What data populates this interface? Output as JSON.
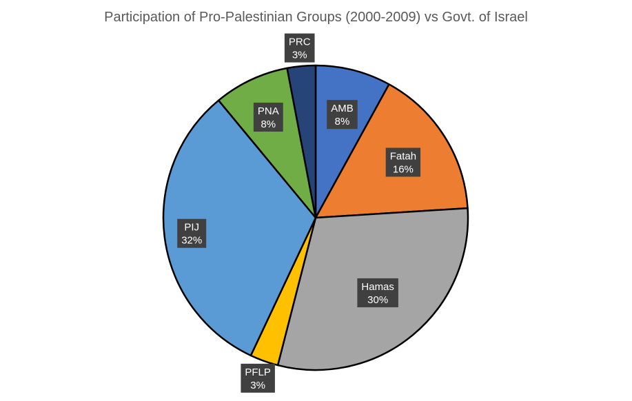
{
  "chart_data": {
    "type": "pie",
    "title": "Participation of Pro-Palestinian Groups (2000-2009) vs Govt. of Israel",
    "slices": [
      {
        "name": "AMB",
        "value": 8,
        "label": "8%",
        "color": "#4472C4"
      },
      {
        "name": "Fatah",
        "value": 16,
        "label": "16%",
        "color": "#ED7D31"
      },
      {
        "name": "Hamas",
        "value": 30,
        "label": "30%",
        "color": "#A5A5A5"
      },
      {
        "name": "PFLP",
        "value": 3,
        "label": "3%",
        "color": "#FFC000"
      },
      {
        "name": "PIJ",
        "value": 32,
        "label": "32%",
        "color": "#5B9BD5"
      },
      {
        "name": "PNA",
        "value": 8,
        "label": "8%",
        "color": "#70AD47"
      },
      {
        "name": "PRC",
        "value": 3,
        "label": "3%",
        "color": "#264478"
      }
    ],
    "data_labels": "category-and-percent",
    "legend": "none"
  }
}
